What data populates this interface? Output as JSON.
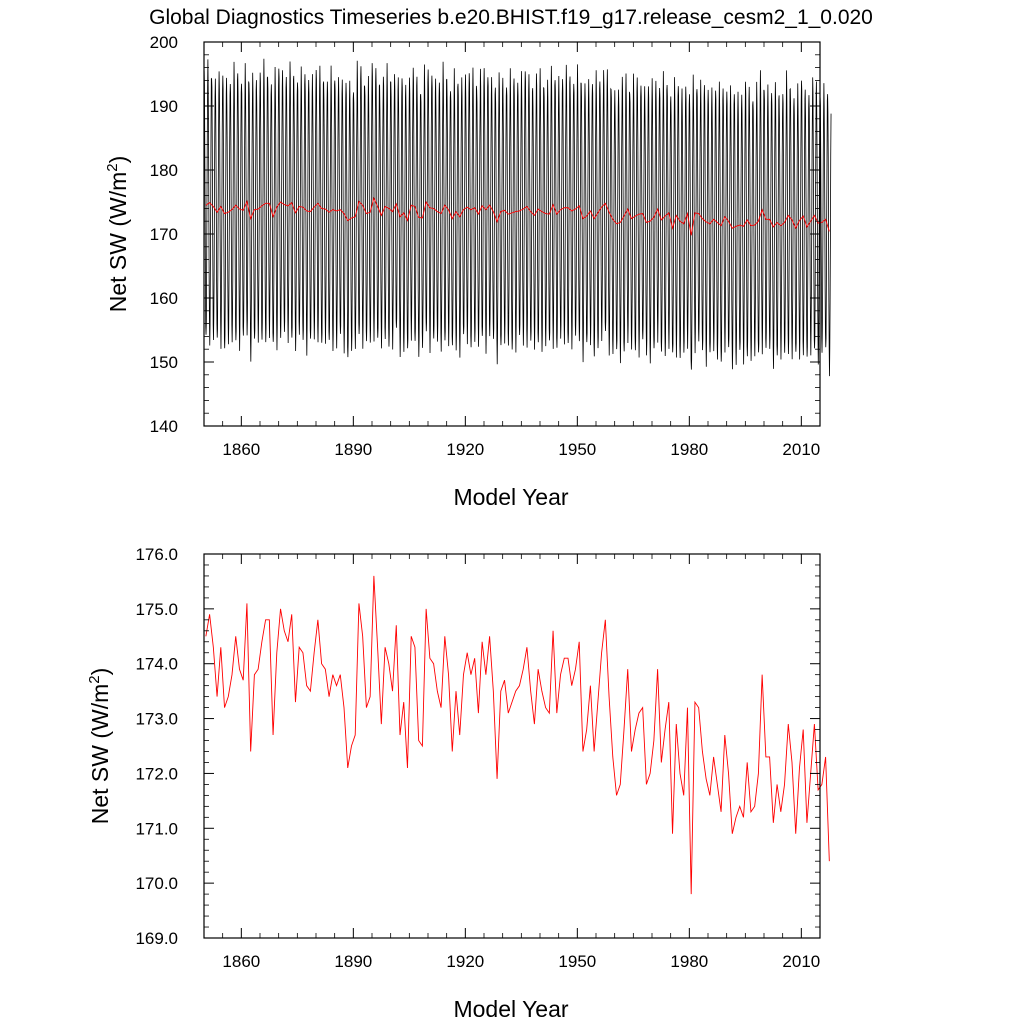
{
  "colors": {
    "monthly": "#000000",
    "annual": "#ff0000",
    "frame": "#000000"
  },
  "chart_data": [
    {
      "type": "line",
      "title": "Global Diagnostics Timeseries b.e20.BHIST.f19_g17.release_cesm2_1_0.020",
      "xlabel": "Model Year",
      "ylabel": "Net SW (W/m",
      "ylabel_sup": "2",
      "ylabel_close": ")",
      "xlim": [
        1850,
        2015
      ],
      "ylim": [
        140,
        200
      ],
      "xticks": [
        1860,
        1890,
        1920,
        1950,
        1980,
        2010
      ],
      "xtick_labels": [
        "1860",
        "1890",
        "1920",
        "1950",
        "1980",
        "2010"
      ],
      "yticks": [
        140,
        150,
        160,
        170,
        180,
        190,
        200
      ],
      "ytick_labels": [
        "140",
        "150",
        "160",
        "170",
        "180",
        "190",
        "200"
      ],
      "grid": false,
      "series": [
        {
          "kind": "monthly",
          "color": "#000000",
          "x_start": 1850,
          "annual_max_approx": 192,
          "annual_min_approx": 150
        },
        {
          "kind": "annual",
          "color": "#ff0000",
          "ref": "annual_mean"
        }
      ]
    },
    {
      "type": "line",
      "title": "",
      "xlabel": "Model Year",
      "ylabel": "Net SW (W/m",
      "ylabel_sup": "2",
      "ylabel_close": ")",
      "xlim": [
        1850,
        2015
      ],
      "ylim": [
        169,
        176
      ],
      "xticks": [
        1860,
        1890,
        1920,
        1950,
        1980,
        2010
      ],
      "xtick_labels": [
        "1860",
        "1890",
        "1920",
        "1950",
        "1980",
        "2010"
      ],
      "yticks": [
        169,
        170,
        171,
        172,
        173,
        174,
        175,
        176
      ],
      "ytick_labels": [
        "169.0",
        "170.0",
        "171.0",
        "172.0",
        "173.0",
        "174.0",
        "175.0",
        "176.0"
      ],
      "grid": false,
      "series": [
        {
          "kind": "annual",
          "color": "#ff0000",
          "ref": "annual_mean"
        }
      ]
    }
  ],
  "annual_mean": {
    "x_start": 1850.5,
    "x_step": 1,
    "values": [
      174.5,
      174.9,
      174.3,
      173.4,
      174.3,
      173.2,
      173.4,
      173.8,
      174.5,
      173.9,
      173.7,
      175.1,
      172.4,
      173.8,
      173.9,
      174.4,
      174.8,
      174.8,
      172.7,
      174.2,
      175.0,
      174.6,
      174.4,
      174.9,
      173.3,
      174.3,
      174.2,
      173.6,
      173.5,
      174.2,
      174.8,
      174.0,
      173.9,
      173.4,
      173.8,
      173.6,
      173.8,
      173.2,
      172.1,
      172.5,
      172.7,
      175.1,
      174.5,
      173.2,
      173.4,
      175.6,
      174.3,
      172.9,
      174.3,
      174.0,
      173.5,
      174.7,
      172.7,
      173.3,
      172.1,
      174.5,
      174.3,
      172.6,
      172.5,
      175.0,
      174.1,
      174.0,
      173.5,
      173.2,
      174.5,
      173.8,
      172.4,
      173.5,
      172.7,
      173.8,
      174.2,
      173.8,
      174.1,
      173.1,
      174.4,
      173.8,
      174.5,
      173.5,
      171.9,
      173.5,
      173.7,
      173.1,
      173.3,
      173.5,
      173.6,
      173.9,
      174.3,
      173.5,
      172.9,
      173.9,
      173.5,
      173.2,
      173.1,
      174.6,
      173.1,
      173.8,
      174.1,
      174.1,
      173.6,
      173.9,
      174.4,
      172.4,
      172.8,
      173.6,
      172.4,
      173.3,
      174.2,
      174.8,
      173.4,
      172.3,
      171.6,
      171.8,
      172.8,
      173.9,
      172.4,
      172.8,
      173.1,
      173.2,
      171.8,
      172.0,
      172.6,
      173.9,
      172.2,
      172.8,
      173.3,
      170.9,
      172.9,
      172.0,
      171.6,
      173.2,
      169.8,
      173.3,
      173.2,
      172.4,
      171.9,
      171.6,
      172.3,
      171.8,
      171.3,
      172.7,
      172.0,
      170.9,
      171.2,
      171.4,
      171.2,
      172.2,
      171.3,
      171.4,
      172.0,
      173.8,
      172.3,
      172.3,
      171.1,
      171.8,
      171.3,
      171.8,
      172.9,
      172.2,
      170.9,
      172.1,
      172.8,
      171.1,
      172.0,
      172.9,
      171.7,
      171.8,
      172.3,
      170.4
    ]
  }
}
